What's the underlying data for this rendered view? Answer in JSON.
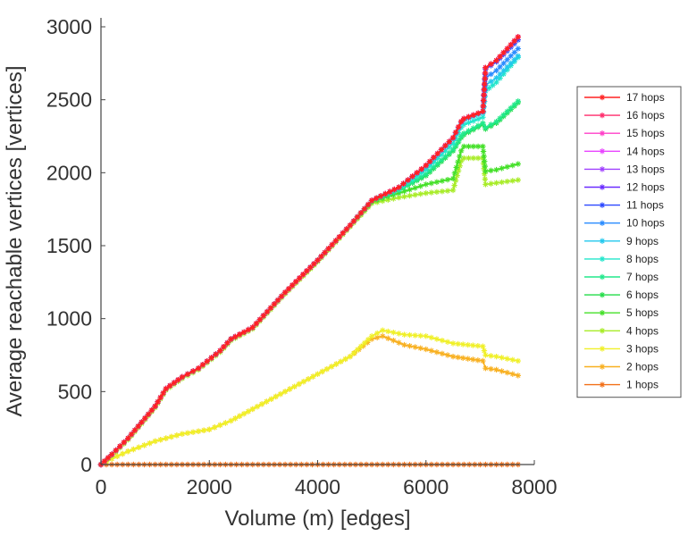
{
  "chart_data": {
    "type": "line",
    "xlabel": "Volume (m) [edges]",
    "ylabel": "Average reachable vertices [vertices]",
    "xlim": [
      0,
      8000
    ],
    "ylim": [
      0,
      3000
    ],
    "xticks": [
      0,
      2000,
      4000,
      6000,
      8000
    ],
    "yticks": [
      0,
      500,
      1000,
      1500,
      2000,
      2500,
      3000
    ],
    "grid": false,
    "legend_position": "right",
    "marker": "asterisk",
    "series": [
      {
        "name": "17 hops",
        "color": "#ff2222",
        "x": [
          0,
          200,
          500,
          1000,
          1200,
          1500,
          1800,
          2200,
          2400,
          2800,
          3400,
          4000,
          4600,
          5000,
          5500,
          6000,
          6500,
          6650,
          6700,
          7050,
          7100,
          7300,
          7700
        ],
        "y": [
          0,
          70,
          180,
          400,
          520,
          600,
          660,
          780,
          860,
          940,
          1180,
          1400,
          1640,
          1810,
          1900,
          2050,
          2240,
          2350,
          2370,
          2420,
          2720,
          2770,
          2930
        ]
      },
      {
        "name": "16 hops",
        "color": "#ff2a6a",
        "x": [
          0,
          200,
          500,
          1000,
          1200,
          1500,
          1800,
          2200,
          2400,
          2800,
          3400,
          4000,
          4600,
          5000,
          5500,
          6000,
          6500,
          6650,
          6700,
          7050,
          7100,
          7300,
          7700
        ],
        "y": [
          0,
          70,
          180,
          400,
          520,
          600,
          660,
          780,
          860,
          940,
          1180,
          1400,
          1640,
          1810,
          1900,
          2050,
          2240,
          2350,
          2370,
          2420,
          2720,
          2770,
          2930
        ]
      },
      {
        "name": "15 hops",
        "color": "#ff3fc8",
        "x": [
          0,
          200,
          500,
          1000,
          1200,
          1500,
          1800,
          2200,
          2400,
          2800,
          3400,
          4000,
          4600,
          5000,
          5500,
          6000,
          6500,
          6650,
          6700,
          7050,
          7100,
          7300,
          7700
        ],
        "y": [
          0,
          70,
          180,
          400,
          520,
          600,
          660,
          780,
          860,
          940,
          1180,
          1400,
          1640,
          1810,
          1900,
          2050,
          2240,
          2350,
          2370,
          2420,
          2720,
          2770,
          2930
        ]
      },
      {
        "name": "14 hops",
        "color": "#e844ff",
        "x": [
          0,
          200,
          500,
          1000,
          1200,
          1500,
          1800,
          2200,
          2400,
          2800,
          3400,
          4000,
          4600,
          5000,
          5500,
          6000,
          6500,
          6650,
          6700,
          7050,
          7100,
          7300,
          7700
        ],
        "y": [
          0,
          70,
          180,
          400,
          520,
          600,
          660,
          780,
          860,
          940,
          1180,
          1400,
          1640,
          1810,
          1900,
          2050,
          2240,
          2350,
          2370,
          2420,
          2720,
          2770,
          2930
        ]
      },
      {
        "name": "13 hops",
        "color": "#a040ff",
        "x": [
          0,
          200,
          500,
          1000,
          1200,
          1500,
          1800,
          2200,
          2400,
          2800,
          3400,
          4000,
          4600,
          5000,
          5500,
          6000,
          6500,
          6650,
          6700,
          7050,
          7100,
          7300,
          7700
        ],
        "y": [
          0,
          70,
          180,
          400,
          520,
          600,
          660,
          780,
          860,
          940,
          1180,
          1400,
          1640,
          1810,
          1900,
          2050,
          2240,
          2350,
          2370,
          2420,
          2720,
          2770,
          2930
        ]
      },
      {
        "name": "12 hops",
        "color": "#6a2cff",
        "x": [
          0,
          200,
          500,
          1000,
          1200,
          1500,
          1800,
          2200,
          2400,
          2800,
          3400,
          4000,
          4600,
          5000,
          5500,
          6000,
          6500,
          6650,
          6700,
          7050,
          7100,
          7300,
          7700
        ],
        "y": [
          0,
          70,
          180,
          400,
          520,
          600,
          660,
          780,
          860,
          940,
          1180,
          1400,
          1640,
          1810,
          1900,
          2050,
          2240,
          2350,
          2370,
          2420,
          2720,
          2770,
          2930
        ]
      },
      {
        "name": "11 hops",
        "color": "#2c48ff",
        "x": [
          0,
          200,
          500,
          1000,
          1200,
          1500,
          1800,
          2200,
          2400,
          2800,
          3400,
          4000,
          4600,
          5000,
          5500,
          6000,
          6500,
          6650,
          6700,
          7050,
          7100,
          7300,
          7700
        ],
        "y": [
          0,
          70,
          180,
          400,
          520,
          600,
          660,
          780,
          860,
          940,
          1180,
          1400,
          1640,
          1810,
          1900,
          2050,
          2240,
          2350,
          2370,
          2420,
          2710,
          2760,
          2910
        ]
      },
      {
        "name": "10 hops",
        "color": "#2a8cff",
        "x": [
          0,
          200,
          500,
          1000,
          1200,
          1500,
          1800,
          2200,
          2400,
          2800,
          3400,
          4000,
          4600,
          5000,
          5500,
          6000,
          6500,
          6650,
          6700,
          7050,
          7100,
          7300,
          7700
        ],
        "y": [
          0,
          70,
          180,
          400,
          520,
          600,
          660,
          780,
          860,
          940,
          1180,
          1400,
          1640,
          1810,
          1900,
          2050,
          2240,
          2350,
          2370,
          2420,
          2650,
          2700,
          2850
        ]
      },
      {
        "name": "9 hops",
        "color": "#22c8ee",
        "x": [
          0,
          200,
          500,
          1000,
          1200,
          1500,
          1800,
          2200,
          2400,
          2800,
          3400,
          4000,
          4600,
          5000,
          5500,
          6000,
          6500,
          6650,
          6700,
          7050,
          7100,
          7300,
          7700
        ],
        "y": [
          0,
          70,
          180,
          400,
          520,
          600,
          660,
          780,
          860,
          940,
          1180,
          1400,
          1640,
          1810,
          1900,
          2040,
          2230,
          2340,
          2360,
          2410,
          2600,
          2650,
          2800
        ]
      },
      {
        "name": "8 hops",
        "color": "#22e6cc",
        "x": [
          0,
          200,
          500,
          1000,
          1200,
          1500,
          1800,
          2200,
          2400,
          2800,
          3400,
          4000,
          4600,
          5000,
          5500,
          6000,
          6500,
          6650,
          6700,
          7050,
          7100,
          7300,
          7700
        ],
        "y": [
          0,
          70,
          180,
          400,
          520,
          600,
          660,
          780,
          860,
          940,
          1180,
          1400,
          1640,
          1810,
          1890,
          2020,
          2200,
          2310,
          2330,
          2380,
          2560,
          2620,
          2790
        ]
      },
      {
        "name": "7 hops",
        "color": "#22e88c",
        "x": [
          0,
          200,
          500,
          1000,
          1200,
          1500,
          1800,
          2200,
          2400,
          2800,
          3400,
          4000,
          4600,
          5000,
          5500,
          6000,
          6500,
          6650,
          6700,
          7050,
          7100,
          7300,
          7700
        ],
        "y": [
          0,
          70,
          180,
          400,
          520,
          600,
          660,
          780,
          860,
          940,
          1180,
          1400,
          1640,
          1810,
          1880,
          1990,
          2160,
          2250,
          2270,
          2340,
          2310,
          2350,
          2490
        ]
      },
      {
        "name": "6 hops",
        "color": "#22dc48",
        "x": [
          0,
          200,
          500,
          1000,
          1200,
          1500,
          1800,
          2200,
          2400,
          2800,
          3400,
          4000,
          4600,
          5000,
          5500,
          6000,
          6500,
          6650,
          6700,
          7050,
          7100,
          7300,
          7700
        ],
        "y": [
          0,
          70,
          180,
          400,
          520,
          600,
          660,
          780,
          860,
          940,
          1180,
          1400,
          1640,
          1810,
          1880,
          1980,
          2150,
          2240,
          2260,
          2330,
          2300,
          2340,
          2480
        ]
      },
      {
        "name": "5 hops",
        "color": "#44e028",
        "x": [
          0,
          200,
          500,
          1000,
          1200,
          1500,
          1800,
          2200,
          2400,
          2800,
          3400,
          4000,
          4600,
          5000,
          5500,
          6000,
          6500,
          6650,
          6700,
          7050,
          7100,
          7300,
          7700
        ],
        "y": [
          0,
          70,
          180,
          400,
          520,
          600,
          660,
          780,
          860,
          940,
          1180,
          1400,
          1640,
          1800,
          1860,
          1920,
          1960,
          2150,
          2180,
          2180,
          2010,
          2020,
          2060
        ]
      },
      {
        "name": "4 hops",
        "color": "#a8ec28",
        "x": [
          0,
          200,
          500,
          1000,
          1200,
          1500,
          1800,
          2200,
          2400,
          2800,
          3400,
          4000,
          4600,
          5000,
          5500,
          6000,
          6500,
          6650,
          6700,
          7050,
          7100,
          7300,
          7700
        ],
        "y": [
          0,
          60,
          170,
          390,
          510,
          590,
          650,
          770,
          850,
          930,
          1170,
          1390,
          1630,
          1790,
          1830,
          1860,
          1880,
          2080,
          2100,
          2100,
          1920,
          1930,
          1950
        ]
      },
      {
        "name": "3 hops",
        "color": "#f0f028",
        "x": [
          0,
          200,
          500,
          1000,
          1500,
          2000,
          2400,
          2800,
          3400,
          4000,
          4600,
          5000,
          5200,
          5600,
          6000,
          6500,
          7050,
          7100,
          7300,
          7700
        ],
        "y": [
          0,
          40,
          90,
          160,
          210,
          240,
          300,
          380,
          500,
          620,
          740,
          880,
          920,
          890,
          880,
          830,
          810,
          750,
          740,
          710
        ]
      },
      {
        "name": "2 hops",
        "color": "#f8b020",
        "x": [
          0,
          200,
          500,
          1000,
          1500,
          2000,
          2400,
          2800,
          3400,
          4000,
          4600,
          5000,
          5200,
          5600,
          6000,
          6500,
          7050,
          7100,
          7300,
          7700
        ],
        "y": [
          0,
          40,
          90,
          160,
          210,
          240,
          300,
          380,
          500,
          620,
          740,
          860,
          880,
          820,
          790,
          740,
          710,
          660,
          650,
          610
        ]
      },
      {
        "name": "1 hops",
        "color": "#f27018",
        "x": [
          0,
          1000,
          2000,
          3000,
          4000,
          5000,
          6000,
          7000,
          7700
        ],
        "y": [
          0,
          0,
          0,
          0,
          0,
          0,
          0,
          0,
          0
        ]
      }
    ]
  }
}
